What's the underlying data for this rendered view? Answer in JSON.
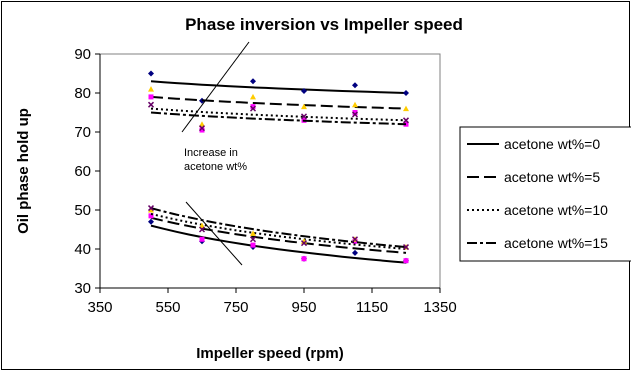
{
  "chart_data": {
    "type": "scatter",
    "title": "Phase inversion vs Impeller speed",
    "xlabel": "Impeller speed (rpm)",
    "ylabel": "Oil phase hold up",
    "xlim": [
      350,
      1350
    ],
    "ylim": [
      30,
      90
    ],
    "xticks": [
      "350",
      "550",
      "750",
      "950",
      "1150",
      "1350"
    ],
    "yticks": [
      "30",
      "40",
      "50",
      "60",
      "70",
      "80",
      "90"
    ],
    "grid": false,
    "legend_position": "right",
    "annotation": "Increase in acetone wt%",
    "series": [
      {
        "name": "acetone wt%=0",
        "color": "#000080",
        "trend_style": "solid",
        "upper": {
          "x": [
            500,
            650,
            800,
            950,
            1100,
            1250
          ],
          "y": [
            85,
            78,
            83,
            80.5,
            82,
            80
          ],
          "trend": [
            83,
            80
          ]
        },
        "lower": {
          "x": [
            500,
            650,
            800,
            950,
            1100,
            1250
          ],
          "y": [
            47,
            42,
            40.5,
            37.5,
            39,
            37
          ],
          "trend": [
            46,
            36.5
          ]
        }
      },
      {
        "name": "acetone wt%=5",
        "color": "#ff00ff",
        "trend_style": "longdash",
        "upper": {
          "x": [
            500,
            650,
            800,
            950,
            1100,
            1250
          ],
          "y": [
            79,
            70.5,
            76.5,
            73,
            75,
            72
          ],
          "trend": [
            79,
            76
          ]
        },
        "lower": {
          "x": [
            500,
            650,
            800,
            950,
            1100,
            1250
          ],
          "y": [
            48.5,
            42.5,
            41,
            37.5,
            42,
            37
          ],
          "trend": [
            48,
            39
          ]
        }
      },
      {
        "name": "acetone wt%=10",
        "color": "#ffcc00",
        "trend_style": "dotted",
        "upper": {
          "x": [
            500,
            650,
            800,
            950,
            1100,
            1250
          ],
          "y": [
            81,
            72,
            79,
            76.5,
            77,
            76
          ],
          "trend": [
            76,
            73
          ]
        },
        "lower": {
          "x": [
            500,
            650,
            800,
            950,
            1100,
            1250
          ],
          "y": [
            50,
            46,
            44,
            42,
            42.5,
            40.5
          ],
          "trend": [
            49,
            40
          ]
        }
      },
      {
        "name": "acetone wt%=15",
        "color": "#660066",
        "trend_style": "dashdot",
        "upper": {
          "x": [
            500,
            650,
            800,
            950,
            1100,
            1250
          ],
          "y": [
            77,
            71,
            76,
            74,
            74.5,
            73
          ],
          "trend": [
            75,
            72
          ]
        },
        "lower": {
          "x": [
            500,
            650,
            800,
            950,
            1100,
            1250
          ],
          "y": [
            50.5,
            45,
            42.5,
            41.5,
            42.5,
            40.5
          ],
          "trend": [
            50.5,
            40.5
          ]
        }
      }
    ]
  }
}
